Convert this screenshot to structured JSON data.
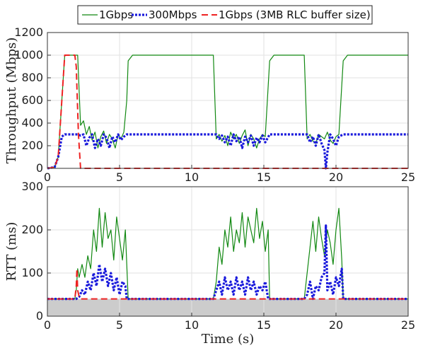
{
  "legend": {
    "entries": [
      {
        "label": "1Gbps",
        "color": "#118811",
        "style": "solid"
      },
      {
        "label": "300Mbps",
        "color": "#1a1adc",
        "style": "dotted"
      },
      {
        "label": "1Gbps (3MB RLC buffer size)",
        "color": "#ee2222",
        "style": "dashed"
      }
    ],
    "placement": "top-center"
  },
  "chart_data": [
    {
      "type": "line",
      "xlabel": "",
      "ylabel": "Throughput (Mbps)",
      "xlim": [
        0,
        25
      ],
      "ylim": [
        0,
        1200
      ],
      "xticks": [
        "0",
        "5",
        "10",
        "15",
        "20",
        "25"
      ],
      "yticks": [
        "0",
        "200",
        "400",
        "600",
        "800",
        "1000",
        "1200"
      ],
      "grid": true,
      "series": [
        {
          "name": "1Gbps",
          "color": "#118811",
          "x": [
            0,
            0.5,
            0.75,
            1.0,
            1.2,
            1.4,
            1.6,
            2.1,
            2.3,
            2.5,
            2.7,
            2.9,
            3.1,
            3.3,
            3.5,
            3.7,
            3.9,
            4.1,
            4.3,
            4.5,
            4.7,
            4.9,
            5.1,
            5.3,
            5.5,
            5.6,
            5.9,
            11.5,
            11.7,
            11.9,
            12.1,
            12.3,
            12.5,
            12.7,
            12.9,
            13.1,
            13.3,
            13.5,
            13.7,
            13.9,
            14.1,
            14.3,
            14.5,
            14.7,
            14.9,
            15.1,
            15.4,
            15.7,
            17.8,
            18.0,
            18.2,
            18.4,
            18.6,
            18.8,
            19.0,
            19.2,
            19.4,
            19.6,
            19.8,
            20.0,
            20.2,
            20.5,
            20.8,
            25
          ],
          "y": [
            0,
            10,
            100,
            600,
            1000,
            1000,
            1000,
            1000,
            380,
            420,
            300,
            370,
            250,
            320,
            180,
            280,
            330,
            220,
            300,
            260,
            180,
            300,
            260,
            320,
            600,
            950,
            1000,
            1000,
            260,
            300,
            240,
            290,
            200,
            320,
            260,
            300,
            220,
            290,
            340,
            200,
            300,
            260,
            180,
            260,
            300,
            280,
            950,
            1000,
            1000,
            260,
            300,
            240,
            220,
            300,
            280,
            260,
            320,
            250,
            220,
            280,
            300,
            950,
            1000,
            1000
          ]
        },
        {
          "name": "300Mbps",
          "color": "#1a1adc",
          "x": [
            0,
            0.5,
            0.75,
            1.0,
            1.2,
            2.1,
            2.3,
            2.5,
            2.7,
            2.9,
            3.1,
            3.3,
            3.5,
            3.7,
            3.9,
            4.1,
            4.3,
            4.5,
            4.7,
            4.9,
            5.1,
            5.3,
            5.5,
            11.5,
            11.7,
            11.9,
            12.1,
            12.3,
            12.5,
            12.7,
            12.9,
            13.1,
            13.3,
            13.5,
            13.7,
            13.9,
            14.1,
            14.3,
            14.5,
            14.7,
            14.9,
            15.1,
            15.4,
            17.8,
            18.0,
            18.2,
            18.4,
            18.6,
            18.8,
            19.0,
            19.2,
            19.3,
            19.4,
            19.6,
            19.8,
            20.0,
            20.2,
            20.5,
            25
          ],
          "y": [
            0,
            10,
            100,
            280,
            300,
            300,
            290,
            300,
            200,
            270,
            300,
            180,
            260,
            200,
            300,
            270,
            180,
            280,
            230,
            300,
            250,
            280,
            300,
            300,
            300,
            260,
            290,
            230,
            280,
            200,
            300,
            240,
            280,
            180,
            280,
            230,
            290,
            200,
            270,
            230,
            290,
            230,
            300,
            300,
            300,
            230,
            280,
            200,
            300,
            220,
            160,
            0,
            140,
            300,
            260,
            200,
            280,
            300,
            300
          ]
        },
        {
          "name": "1Gbps (3MB RLC buffer size)",
          "color": "#ee2222",
          "x": [
            0,
            0.5,
            0.75,
            1.0,
            1.2,
            1.4,
            1.6,
            1.9,
            2.0,
            2.15,
            2.3,
            25
          ],
          "y": [
            0,
            10,
            100,
            600,
            1000,
            1000,
            1000,
            1000,
            900,
            300,
            0,
            0
          ]
        }
      ]
    },
    {
      "type": "line",
      "xlabel": "Time (s)",
      "ylabel": "RTT (ms)",
      "xlim": [
        0,
        25
      ],
      "ylim": [
        0,
        300
      ],
      "xticks": [
        "0",
        "5",
        "10",
        "15",
        "20",
        "25"
      ],
      "yticks": [
        "0",
        "100",
        "200",
        "300"
      ],
      "grid": true,
      "baseline_band": {
        "from": 0,
        "to": 40,
        "color": "#cccccc"
      },
      "series": [
        {
          "name": "1Gbps",
          "color": "#118811",
          "x": [
            0,
            1.9,
            2.0,
            2.1,
            2.2,
            2.4,
            2.6,
            2.8,
            3.0,
            3.2,
            3.4,
            3.6,
            3.8,
            4.0,
            4.2,
            4.4,
            4.6,
            4.8,
            5.0,
            5.2,
            5.4,
            5.5,
            5.6,
            11.5,
            11.7,
            11.9,
            12.1,
            12.3,
            12.5,
            12.7,
            12.9,
            13.1,
            13.3,
            13.5,
            13.7,
            13.9,
            14.1,
            14.3,
            14.5,
            14.7,
            14.9,
            15.1,
            15.3,
            15.4,
            17.8,
            18.0,
            18.2,
            18.4,
            18.6,
            18.8,
            19.0,
            19.2,
            19.4,
            19.6,
            19.8,
            20.0,
            20.2,
            20.4,
            20.5,
            25
          ],
          "y": [
            40,
            40,
            60,
            110,
            90,
            120,
            90,
            140,
            110,
            200,
            150,
            250,
            160,
            240,
            180,
            200,
            130,
            230,
            180,
            130,
            200,
            120,
            40,
            40,
            80,
            160,
            120,
            200,
            160,
            230,
            150,
            200,
            170,
            240,
            160,
            230,
            200,
            170,
            250,
            180,
            220,
            150,
            200,
            40,
            40,
            100,
            160,
            220,
            150,
            230,
            180,
            140,
            200,
            170,
            120,
            200,
            250,
            130,
            40,
            40
          ]
        },
        {
          "name": "300Mbps",
          "color": "#1a1adc",
          "x": [
            0,
            2.0,
            2.2,
            2.4,
            2.6,
            2.8,
            3.0,
            3.2,
            3.4,
            3.6,
            3.8,
            4.0,
            4.2,
            4.4,
            4.6,
            4.8,
            5.0,
            5.2,
            5.4,
            5.5,
            11.5,
            11.7,
            11.9,
            12.1,
            12.3,
            12.5,
            12.7,
            12.9,
            13.1,
            13.3,
            13.5,
            13.7,
            13.9,
            14.1,
            14.3,
            14.5,
            14.7,
            14.9,
            15.1,
            15.3,
            17.8,
            18.0,
            18.2,
            18.4,
            18.6,
            18.8,
            19.0,
            19.2,
            19.3,
            19.4,
            19.6,
            19.8,
            20.0,
            20.2,
            20.4,
            20.5,
            25
          ],
          "y": [
            40,
            40,
            45,
            60,
            50,
            80,
            60,
            100,
            70,
            120,
            80,
            110,
            70,
            100,
            60,
            90,
            50,
            80,
            70,
            40,
            40,
            60,
            80,
            50,
            90,
            60,
            80,
            50,
            90,
            60,
            80,
            50,
            90,
            60,
            80,
            50,
            70,
            60,
            80,
            40,
            40,
            50,
            80,
            40,
            70,
            60,
            90,
            100,
            210,
            60,
            80,
            50,
            90,
            70,
            110,
            40,
            40
          ]
        },
        {
          "name": "1Gbps (3MB RLC buffer size)",
          "color": "#ee2222",
          "x": [
            0,
            1.9,
            2.0,
            2.05,
            2.1,
            2.2,
            2.3,
            25
          ],
          "y": [
            40,
            40,
            70,
            110,
            60,
            45,
            40,
            40
          ]
        }
      ]
    }
  ]
}
